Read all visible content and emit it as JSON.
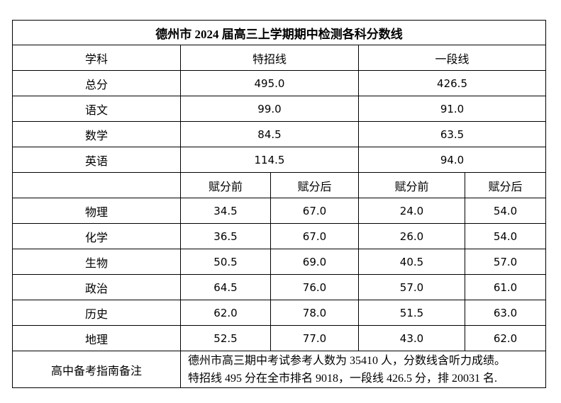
{
  "title": "德州市 2024 届高三上学期期中检测各科分数线",
  "header": [
    "学科",
    "特招线",
    "一段线"
  ],
  "totals": [
    [
      "总分",
      "495.0",
      "426.5"
    ],
    [
      "语文",
      "99.0",
      "91.0"
    ],
    [
      "数学",
      "84.5",
      "63.5"
    ],
    [
      "英语",
      "114.5",
      "94.0"
    ]
  ],
  "subheader": [
    "赋分前",
    "赋分后",
    "赋分前",
    "赋分后"
  ],
  "subjects": [
    [
      "物理",
      "34.5",
      "67.0",
      "24.0",
      "54.0"
    ],
    [
      "化学",
      "36.5",
      "67.0",
      "26.0",
      "54.0"
    ],
    [
      "生物",
      "50.5",
      "69.0",
      "40.5",
      "57.0"
    ],
    [
      "政治",
      "64.5",
      "76.0",
      "57.0",
      "61.0"
    ],
    [
      "历史",
      "62.0",
      "78.0",
      "51.5",
      "63.0"
    ],
    [
      "地理",
      "52.5",
      "77.0",
      "43.0",
      "62.0"
    ]
  ],
  "note": {
    "label": "高中备考指南备注",
    "lines": [
      "德州市高三期中考试参考人数为 35410 人，分数线含听力成绩。",
      "特招线 495 分在全市排名 9018，一段线 426.5 分，排 20031 名."
    ]
  }
}
